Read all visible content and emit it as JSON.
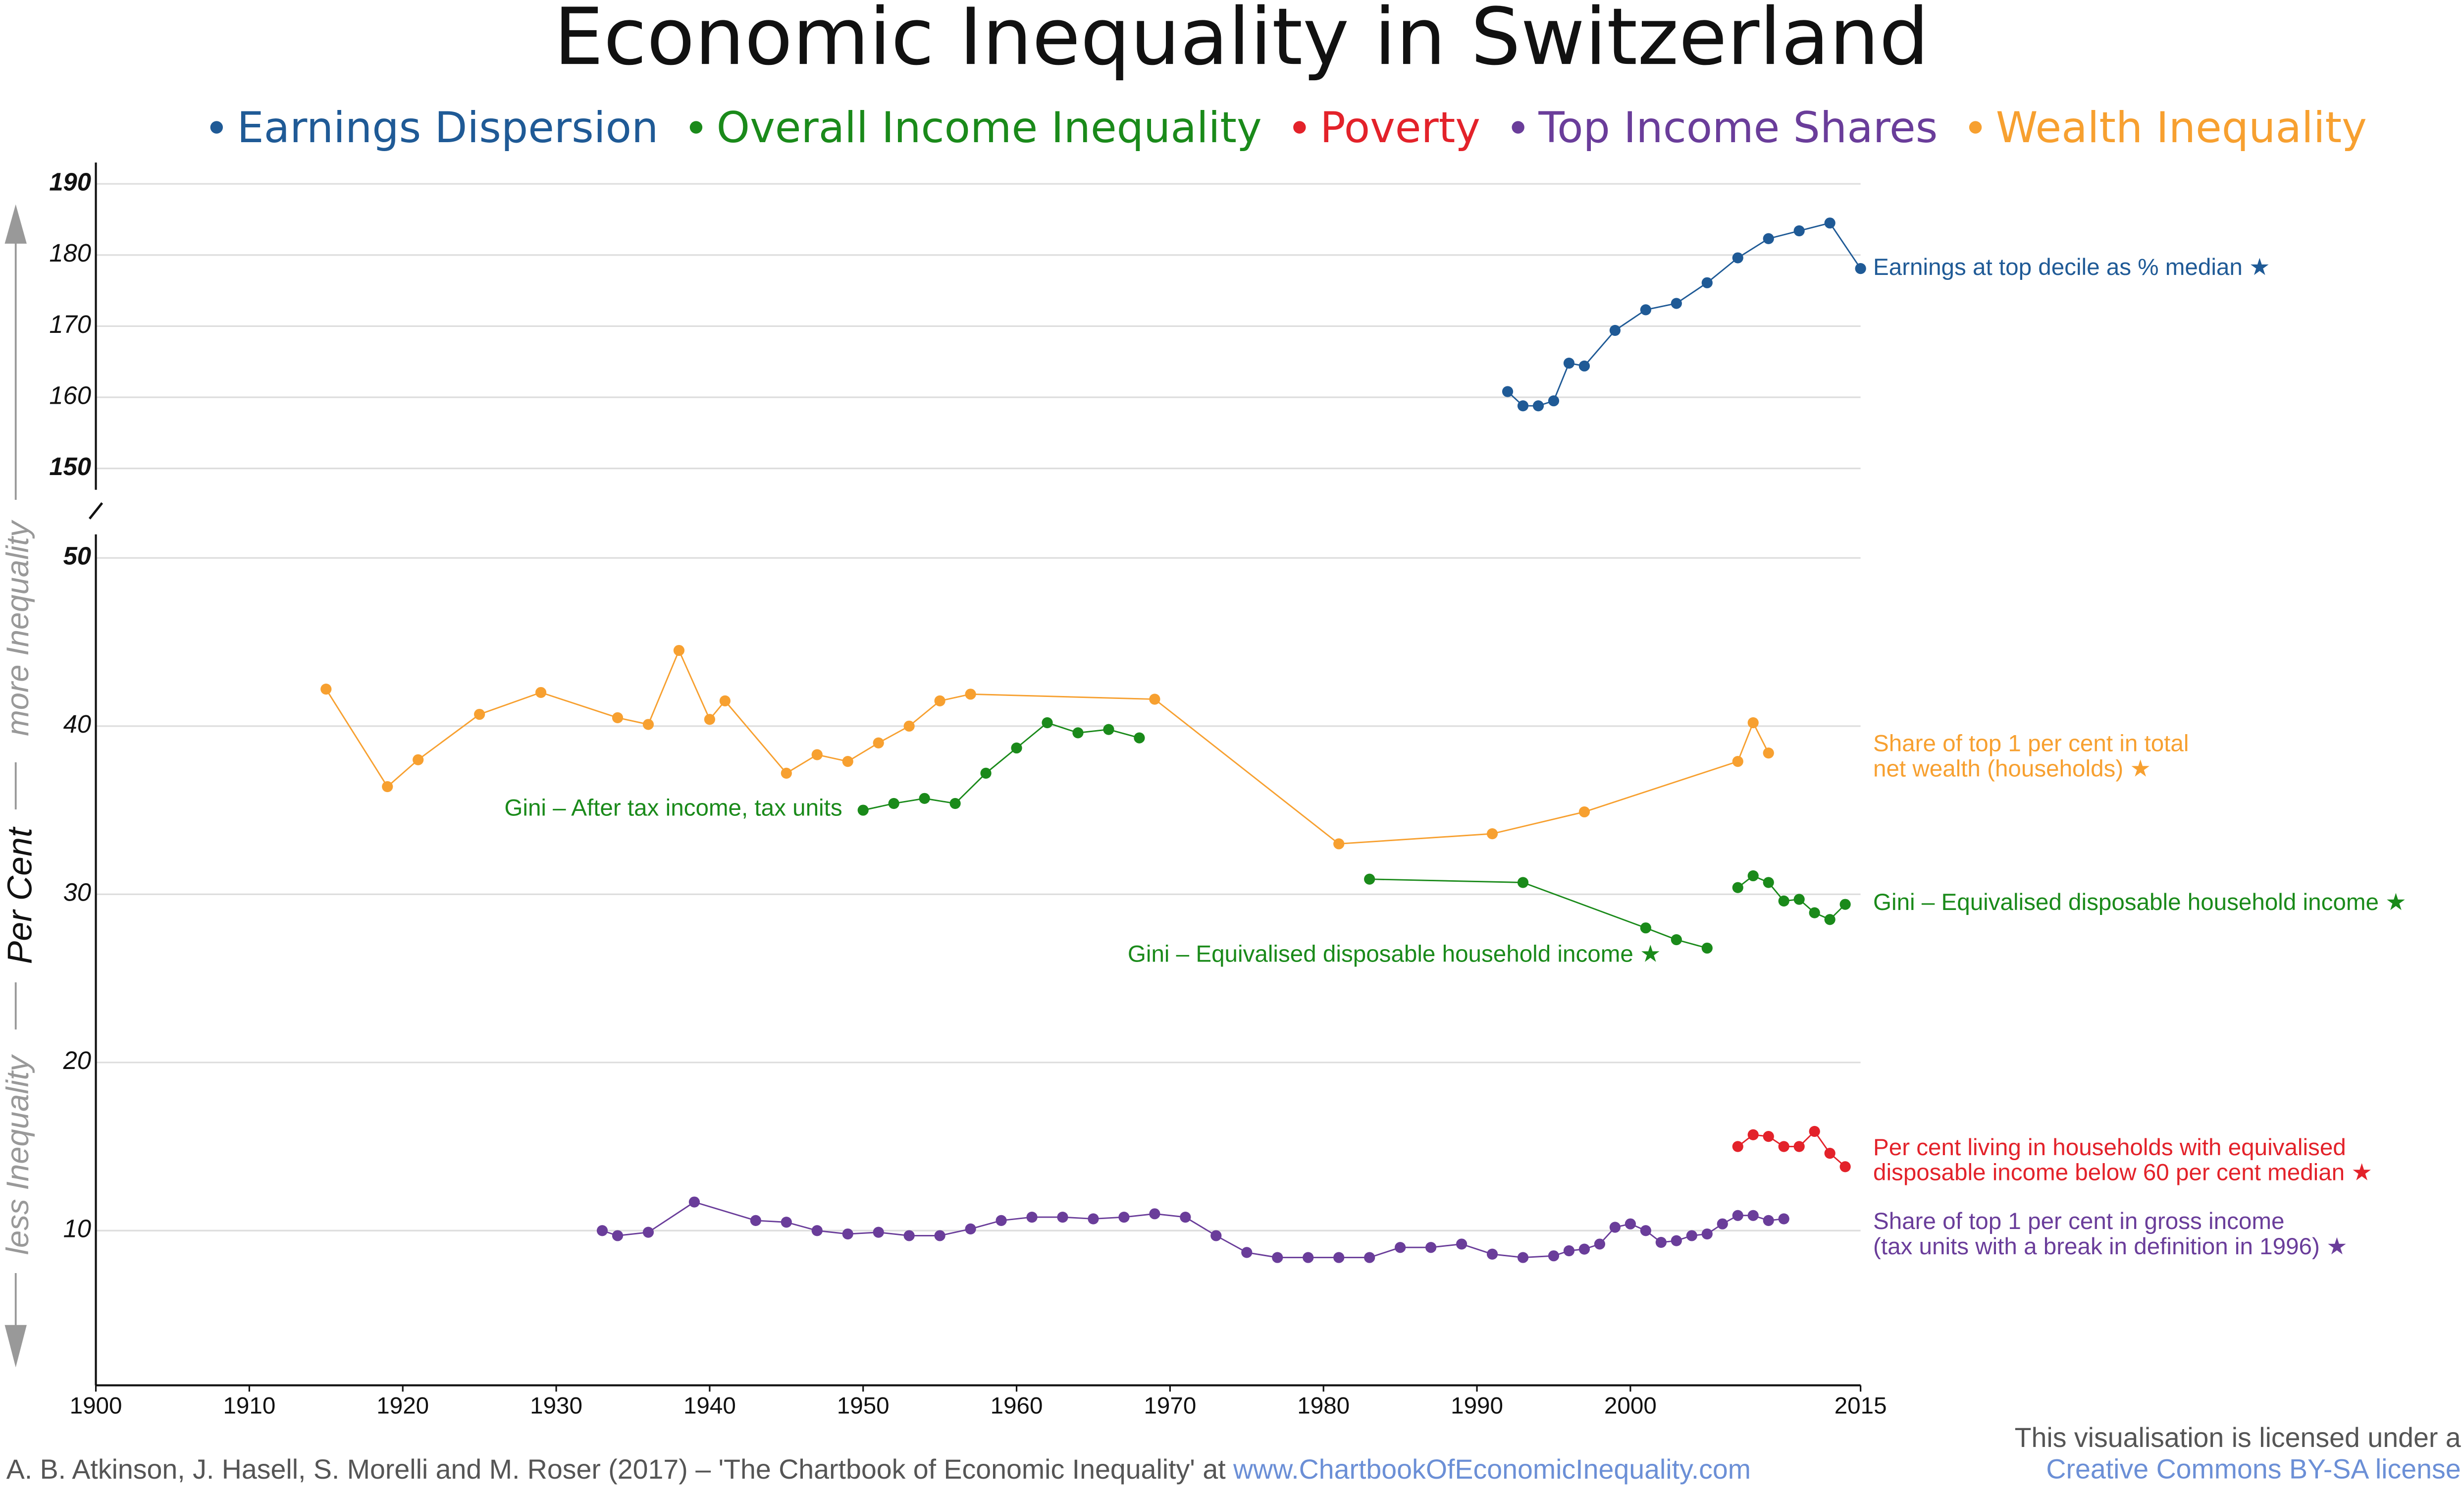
{
  "title": "Economic Inequality in Switzerland",
  "legend": [
    {
      "name": "Earnings Dispersion",
      "color": "#1f5a96"
    },
    {
      "name": "Overall Income Inequality",
      "color": "#1a8a1a"
    },
    {
      "name": "Poverty",
      "color": "#e3222a"
    },
    {
      "name": "Top Income Shares",
      "color": "#6a3d9a"
    },
    {
      "name": "Wealth Inequality",
      "color": "#f7a030"
    }
  ],
  "y_axis_notes": {
    "up": "more Inequality",
    "label": "Per Cent",
    "down": "less Inequality"
  },
  "footer": {
    "source": "A. B. Atkinson, J. Hasell, S. Morelli and M. Roser (2017) – 'The Chartbook of Economic Inequality' at ",
    "link": "www.ChartbookOfEconomicInequality.com",
    "license": "This visualisation is licensed under a",
    "license_link": "Creative Commons BY-SA license"
  },
  "chart_data": [
    {
      "type": "line",
      "xlim": [
        1900,
        2015
      ],
      "ylim": [
        147,
        193
      ],
      "yticks": [
        150,
        160,
        170,
        180,
        190
      ],
      "grid": true,
      "series": [
        {
          "label": [
            "Earnings at top decile as % median ★"
          ],
          "color": "#1f5a96",
          "x": [
            1992,
            1993,
            1994,
            1995,
            1996,
            1997,
            1999,
            2001,
            2003,
            2005,
            2007,
            2009,
            2011,
            2013,
            2015
          ],
          "values": [
            160.8,
            158.8,
            158.8,
            159.5,
            164.8,
            164.4,
            169.4,
            172.3,
            173.2,
            176.1,
            179.6,
            182.3,
            183.4,
            184.5,
            178.1
          ]
        }
      ]
    },
    {
      "type": "line",
      "xlim": [
        1900,
        2015
      ],
      "ylim": [
        0.8,
        51.4
      ],
      "yticks": [
        10,
        20,
        30,
        40,
        50
      ],
      "xticks": [
        1900,
        1910,
        1920,
        1930,
        1940,
        1950,
        1960,
        1970,
        1980,
        1990,
        2000,
        2015
      ],
      "grid": true,
      "series": [
        {
          "label": [
            "Share of top 1 per cent in total",
            "net wealth (households) ★"
          ],
          "color": "#f7a030",
          "x": [
            1915,
            1919,
            1921,
            1925,
            1929,
            1934,
            1936,
            1938,
            1940,
            1941,
            1945,
            1947,
            1949,
            1951,
            1953,
            1955,
            1957,
            1969,
            1981,
            1991,
            1997,
            2007,
            2008,
            2009
          ],
          "values": [
            42.2,
            36.4,
            38.0,
            40.7,
            42.0,
            40.5,
            40.1,
            44.5,
            40.4,
            41.5,
            37.2,
            38.3,
            37.9,
            39.0,
            40.0,
            41.5,
            41.9,
            41.6,
            33.0,
            33.6,
            34.9,
            37.9,
            40.2,
            38.4
          ]
        },
        {
          "label": [
            "Gini – After tax income, tax units"
          ],
          "color": "#1a8a1a",
          "x": [
            1950,
            1952,
            1954,
            1956,
            1958,
            1960,
            1962,
            1964,
            1966,
            1968
          ],
          "values": [
            35.0,
            35.4,
            35.7,
            35.4,
            37.2,
            38.7,
            40.2,
            39.6,
            39.8,
            39.3
          ]
        },
        {
          "label": [
            "Gini – Equivalised disposable household income ★"
          ],
          "color": "#1a8a1a",
          "x": [
            1983,
            1993,
            2001,
            2003,
            2005
          ],
          "values": [
            30.9,
            30.7,
            28.0,
            27.3,
            26.8
          ]
        },
        {
          "label": [
            "Gini – Equivalised disposable household income ★"
          ],
          "color": "#1a8a1a",
          "x": [
            2007,
            2008,
            2009,
            2010,
            2011,
            2012,
            2013,
            2014
          ],
          "values": [
            30.4,
            31.1,
            30.7,
            29.6,
            29.7,
            28.9,
            28.5,
            29.4
          ]
        },
        {
          "label": [
            "Per cent living in households with equivalised",
            "disposable income below 60 per cent median ★"
          ],
          "color": "#e3222a",
          "x": [
            2007,
            2008,
            2009,
            2010,
            2011,
            2012,
            2013,
            2014
          ],
          "values": [
            15.0,
            15.7,
            15.6,
            15.0,
            15.0,
            15.9,
            14.6,
            13.8
          ]
        },
        {
          "label": [
            "Share of top 1 per cent in gross income",
            "(tax units with a break in definition in 1996) ★"
          ],
          "color": "#6a3d9a",
          "x": [
            1933,
            1934,
            1936,
            1939,
            1943,
            1945,
            1947,
            1949,
            1951,
            1953,
            1955,
            1957,
            1959,
            1961,
            1963,
            1965,
            1967,
            1969,
            1971,
            1973,
            1975,
            1977,
            1979,
            1981,
            1983,
            1985,
            1987,
            1989,
            1991,
            1993,
            1995,
            1996,
            1997,
            1998,
            1999,
            2000,
            2001,
            2002,
            2003,
            2004,
            2005,
            2006,
            2007,
            2008,
            2009,
            2010
          ],
          "values": [
            10.0,
            9.7,
            9.9,
            11.7,
            10.6,
            10.5,
            10.0,
            9.8,
            9.9,
            9.7,
            9.7,
            10.1,
            10.6,
            10.8,
            10.8,
            10.7,
            10.8,
            11.0,
            10.8,
            9.7,
            8.7,
            8.4,
            8.4,
            8.4,
            8.4,
            9.0,
            9.0,
            9.2,
            8.6,
            8.4,
            8.5,
            8.8,
            8.9,
            9.2,
            10.2,
            10.4,
            10.0,
            9.3,
            9.4,
            9.7,
            9.8,
            10.4,
            10.9,
            10.9,
            10.6,
            10.7
          ]
        }
      ]
    }
  ]
}
